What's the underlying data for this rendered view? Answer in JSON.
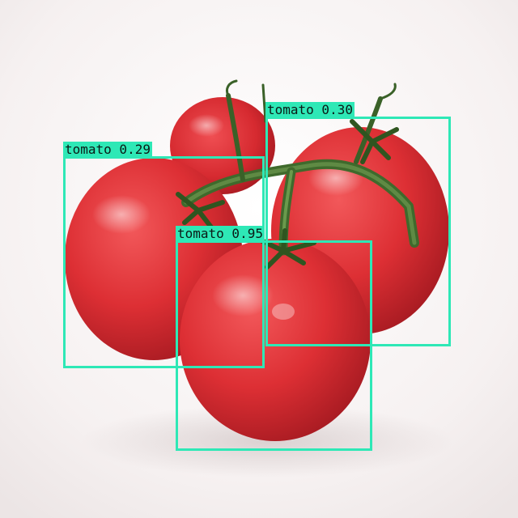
{
  "image": {
    "subject": "tomato-cluster-photo",
    "background_color": "#f4f0f0"
  },
  "detection_style": {
    "box_color": "#2ee8b6",
    "label_text_color": "#0b1a16"
  },
  "detections": [
    {
      "class": "tomato",
      "score": "0.95",
      "label": "tomato 0.95"
    },
    {
      "class": "tomato",
      "score": "0.30",
      "label": "tomato 0.30"
    },
    {
      "class": "tomato",
      "score": "0.29",
      "label": "tomato 0.29"
    }
  ]
}
